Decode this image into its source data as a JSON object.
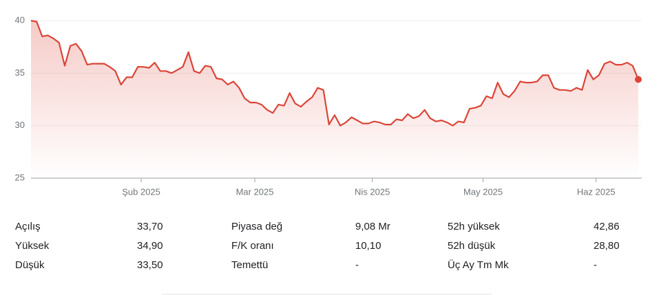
{
  "chart_data": {
    "type": "line",
    "color": "#db4437",
    "values": [
      40.0,
      39.9,
      38.5,
      38.6,
      38.3,
      37.9,
      35.7,
      37.6,
      37.8,
      37.1,
      35.8,
      35.9,
      35.9,
      35.9,
      35.6,
      35.2,
      33.9,
      34.6,
      34.6,
      35.6,
      35.6,
      35.5,
      36.0,
      35.2,
      35.2,
      35.0,
      35.3,
      35.6,
      37.0,
      35.2,
      35.0,
      35.7,
      35.6,
      34.5,
      34.4,
      33.9,
      34.2,
      33.6,
      32.6,
      32.2,
      32.2,
      32.0,
      31.5,
      31.2,
      32.0,
      31.9,
      33.1,
      32.1,
      31.8,
      32.3,
      32.7,
      33.6,
      33.4,
      30.1,
      31.0,
      30.0,
      30.3,
      30.8,
      30.5,
      30.2,
      30.2,
      30.4,
      30.3,
      30.1,
      30.1,
      30.6,
      30.5,
      31.1,
      30.7,
      30.9,
      31.5,
      30.7,
      30.4,
      30.5,
      30.3,
      30.0,
      30.4,
      30.3,
      31.6,
      31.7,
      31.9,
      32.8,
      32.6,
      34.1,
      33.0,
      32.7,
      33.3,
      34.2,
      34.1,
      34.1,
      34.2,
      34.8,
      34.8,
      33.6,
      33.4,
      33.4,
      33.3,
      33.6,
      33.4,
      35.3,
      34.4,
      34.8,
      35.9,
      36.1,
      35.8,
      35.8,
      36.0,
      35.7,
      34.4
    ],
    "xlim": [
      0,
      108
    ],
    "xticks": [
      {
        "value": 19.6,
        "label": "Şub 2025"
      },
      {
        "value": 39.8,
        "label": "Mar 2025"
      },
      {
        "value": 60.7,
        "label": "Nis 2025"
      },
      {
        "value": 80.4,
        "label": "May 2025"
      },
      {
        "value": 100.5,
        "label": "Haz 2025"
      }
    ],
    "ylim": [
      25,
      40
    ],
    "yticks": [
      25,
      30,
      35,
      40
    ],
    "grid": true
  },
  "stats": [
    [
      [
        "Açılış",
        "33,70"
      ],
      [
        "Yüksek",
        "34,90"
      ],
      [
        "Düşük",
        "33,50"
      ]
    ],
    [
      [
        "Piyasa değ",
        "9,08 Mr"
      ],
      [
        "F/K oranı",
        "10,10"
      ],
      [
        "Temettü",
        "-"
      ]
    ],
    [
      [
        "52h yüksek",
        "42,86"
      ],
      [
        "52h düşük",
        "28,80"
      ],
      [
        "Üç Ay Tm Mk",
        "-"
      ]
    ]
  ]
}
